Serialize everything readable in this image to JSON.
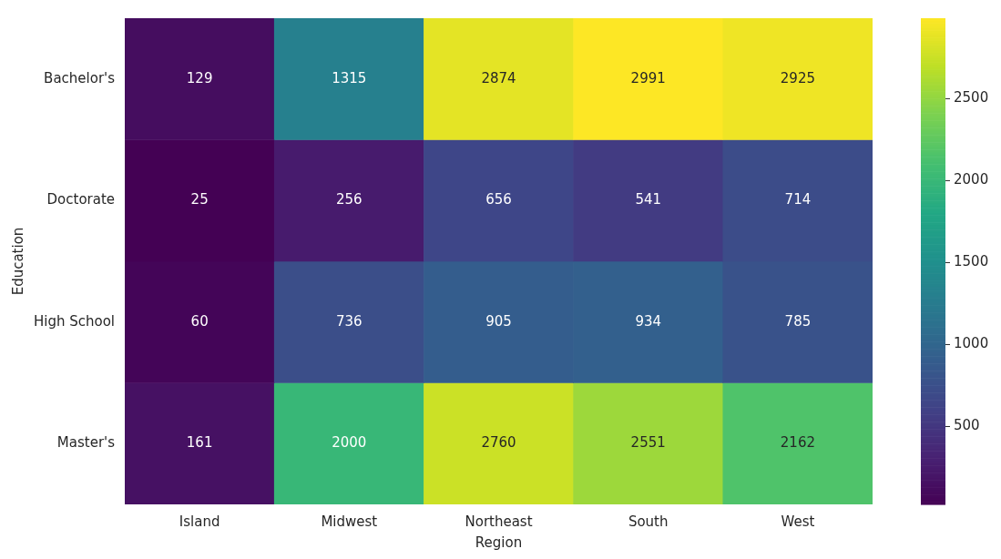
{
  "chart_data": {
    "type": "heatmap",
    "xlabel": "Region",
    "ylabel": "Education",
    "categories": [
      "Island",
      "Midwest",
      "Northeast",
      "South",
      "West"
    ],
    "y_categories": [
      "Bachelor's",
      "Doctorate",
      "High School",
      "Master's"
    ],
    "cells": [
      [
        129,
        1315,
        2874,
        2991,
        2925
      ],
      [
        25,
        256,
        656,
        541,
        714
      ],
      [
        60,
        736,
        905,
        934,
        785
      ],
      [
        161,
        2000,
        2760,
        2551,
        2162
      ]
    ],
    "clim": [
      25,
      2991
    ],
    "cticks": [
      500,
      1000,
      1500,
      2000,
      2500
    ],
    "data_labels": true,
    "legend": false
  }
}
